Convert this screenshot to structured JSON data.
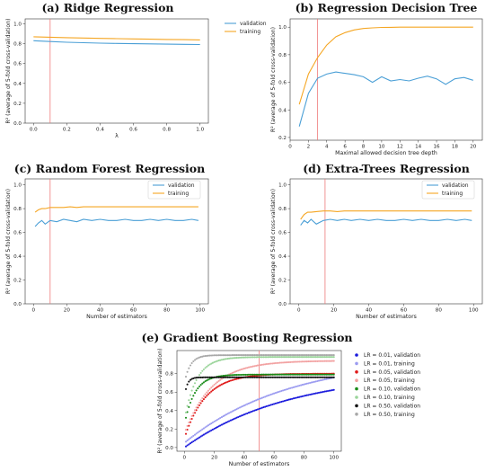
{
  "colors": {
    "validation": "#4a9fd6",
    "training": "#f5a623",
    "vline": "#ee7c7c"
  },
  "chart_data": [
    {
      "id": "a",
      "type": "line",
      "title": "(a) Ridge Regression",
      "xlabel": "λ",
      "ylabel": "R² (average of 5-fold cross-validation)",
      "xlim": [
        -0.05,
        1.05
      ],
      "ylim": [
        0,
        1.05
      ],
      "xticks": [
        0.0,
        0.2,
        0.4,
        0.6,
        0.8,
        1.0
      ],
      "xtick_labels": [
        "0.0",
        "0.2",
        "0.4",
        "0.6",
        "0.8",
        "1.0"
      ],
      "yticks": [
        0.0,
        0.2,
        0.4,
        0.6,
        0.8,
        1.0
      ],
      "ytick_labels": [
        "0.0",
        "0.2",
        "0.4",
        "0.6",
        "0.8",
        "1.0"
      ],
      "vline": 0.1,
      "legend": "outside-right",
      "series": [
        {
          "name": "validation",
          "x": [
            0.0,
            0.1,
            0.2,
            0.3,
            0.4,
            0.5,
            0.6,
            0.7,
            0.8,
            0.9,
            1.0
          ],
          "values": [
            0.83,
            0.822,
            0.815,
            0.81,
            0.806,
            0.803,
            0.8,
            0.798,
            0.796,
            0.794,
            0.792
          ]
        },
        {
          "name": "training",
          "x": [
            0.0,
            0.1,
            0.2,
            0.3,
            0.4,
            0.5,
            0.6,
            0.7,
            0.8,
            0.9,
            1.0
          ],
          "values": [
            0.87,
            0.865,
            0.861,
            0.857,
            0.854,
            0.851,
            0.848,
            0.845,
            0.843,
            0.841,
            0.838
          ]
        }
      ]
    },
    {
      "id": "b",
      "type": "line",
      "title": "(b) Regression Decision Tree",
      "xlabel": "Maximal allowed decision tree depth",
      "ylabel": "R² (average of 5-fold cross-validation)",
      "xlim": [
        0,
        21
      ],
      "ylim": [
        0.18,
        1.06
      ],
      "xticks": [
        0,
        2,
        4,
        6,
        8,
        10,
        12,
        14,
        16,
        18,
        20
      ],
      "xtick_labels": [
        "0",
        "2",
        "4",
        "6",
        "8",
        "10",
        "12",
        "14",
        "16",
        "18",
        "20"
      ],
      "yticks": [
        0.2,
        0.4,
        0.6,
        0.8,
        1.0
      ],
      "ytick_labels": [
        "0.2",
        "0.4",
        "0.6",
        "0.8",
        "1.0"
      ],
      "vline": 3,
      "series": [
        {
          "name": "validation",
          "x": [
            1,
            2,
            3,
            4,
            5,
            6,
            7,
            8,
            9,
            10,
            11,
            12,
            13,
            14,
            15,
            16,
            17,
            18,
            19,
            20
          ],
          "values": [
            0.28,
            0.52,
            0.63,
            0.66,
            0.675,
            0.665,
            0.655,
            0.64,
            0.6,
            0.64,
            0.61,
            0.62,
            0.61,
            0.63,
            0.645,
            0.625,
            0.585,
            0.625,
            0.635,
            0.615
          ]
        },
        {
          "name": "training",
          "x": [
            1,
            2,
            3,
            4,
            5,
            6,
            7,
            8,
            9,
            10,
            11,
            12,
            13,
            14,
            15,
            16,
            17,
            18,
            19,
            20
          ],
          "values": [
            0.44,
            0.66,
            0.78,
            0.87,
            0.93,
            0.96,
            0.98,
            0.99,
            0.995,
            0.998,
            0.999,
            1.0,
            1.0,
            1.0,
            1.0,
            1.0,
            1.0,
            1.0,
            1.0,
            1.0
          ]
        }
      ]
    },
    {
      "id": "c",
      "type": "line",
      "title": "(c) Random Forest Regression",
      "xlabel": "Number of estimators",
      "ylabel": "R² (average of 5-fold cross-validation)",
      "xlim": [
        -5,
        105
      ],
      "ylim": [
        0,
        1.05
      ],
      "xticks": [
        0,
        20,
        40,
        60,
        80,
        100
      ],
      "xtick_labels": [
        "0",
        "20",
        "40",
        "60",
        "80",
        "100"
      ],
      "yticks": [
        0.0,
        0.2,
        0.4,
        0.6,
        0.8,
        1.0
      ],
      "ytick_labels": [
        "0.0",
        "0.2",
        "0.4",
        "0.6",
        "0.8",
        "1.0"
      ],
      "vline": 10,
      "legend": "top-right",
      "series": [
        {
          "name": "validation",
          "x": [
            1,
            3,
            5,
            7,
            10,
            14,
            18,
            22,
            26,
            30,
            35,
            40,
            45,
            50,
            55,
            60,
            65,
            70,
            75,
            80,
            85,
            90,
            95,
            99
          ],
          "values": [
            0.65,
            0.68,
            0.7,
            0.67,
            0.7,
            0.69,
            0.71,
            0.7,
            0.69,
            0.71,
            0.7,
            0.71,
            0.7,
            0.7,
            0.71,
            0.7,
            0.7,
            0.71,
            0.7,
            0.71,
            0.7,
            0.7,
            0.71,
            0.7
          ]
        },
        {
          "name": "training",
          "x": [
            1,
            3,
            5,
            7,
            10,
            14,
            18,
            22,
            26,
            30,
            35,
            40,
            45,
            50,
            55,
            60,
            65,
            70,
            75,
            80,
            85,
            90,
            95,
            99
          ],
          "values": [
            0.77,
            0.79,
            0.8,
            0.8,
            0.81,
            0.81,
            0.81,
            0.815,
            0.81,
            0.815,
            0.815,
            0.815,
            0.815,
            0.815,
            0.815,
            0.815,
            0.815,
            0.815,
            0.815,
            0.815,
            0.815,
            0.815,
            0.815,
            0.815
          ]
        }
      ]
    },
    {
      "id": "d",
      "type": "line",
      "title": "(d) Extra-Trees Regression",
      "xlabel": "Number of estimators",
      "ylabel": "R² (average of 5-fold cross-validation)",
      "xlim": [
        -5,
        105
      ],
      "ylim": [
        0,
        1.05
      ],
      "xticks": [
        0,
        20,
        40,
        60,
        80,
        100
      ],
      "xtick_labels": [
        "0",
        "20",
        "40",
        "60",
        "80",
        "100"
      ],
      "yticks": [
        0.0,
        0.2,
        0.4,
        0.6,
        0.8,
        1.0
      ],
      "ytick_labels": [
        "0.0",
        "0.2",
        "0.4",
        "0.6",
        "0.8",
        "1.0"
      ],
      "vline": 15,
      "legend": "top-right",
      "series": [
        {
          "name": "validation",
          "x": [
            1,
            3,
            5,
            7,
            10,
            14,
            18,
            22,
            26,
            30,
            35,
            40,
            45,
            50,
            55,
            60,
            65,
            70,
            75,
            80,
            85,
            90,
            95,
            99
          ],
          "values": [
            0.66,
            0.7,
            0.68,
            0.71,
            0.67,
            0.7,
            0.71,
            0.7,
            0.71,
            0.7,
            0.71,
            0.7,
            0.71,
            0.7,
            0.7,
            0.71,
            0.7,
            0.71,
            0.7,
            0.7,
            0.71,
            0.7,
            0.71,
            0.7
          ]
        },
        {
          "name": "training",
          "x": [
            1,
            3,
            5,
            7,
            10,
            14,
            18,
            22,
            26,
            30,
            35,
            40,
            45,
            50,
            55,
            60,
            65,
            70,
            75,
            80,
            85,
            90,
            95,
            99
          ],
          "values": [
            0.71,
            0.75,
            0.77,
            0.77,
            0.775,
            0.78,
            0.78,
            0.775,
            0.78,
            0.78,
            0.78,
            0.78,
            0.78,
            0.78,
            0.78,
            0.78,
            0.78,
            0.78,
            0.78,
            0.78,
            0.78,
            0.78,
            0.78,
            0.78
          ]
        }
      ]
    },
    {
      "id": "e",
      "type": "scatter",
      "title": "(e) Gradient Boosting Regression",
      "xlabel": "Number of estimators",
      "ylabel": "R² (average of 5-fold cross-validation)",
      "xlim": [
        -5,
        105
      ],
      "ylim": [
        -0.04,
        1.05
      ],
      "xticks": [
        0,
        20,
        40,
        60,
        80,
        100
      ],
      "xtick_labels": [
        "0",
        "20",
        "40",
        "60",
        "80",
        "100"
      ],
      "yticks": [
        0.0,
        0.2,
        0.4,
        0.6,
        0.8
      ],
      "ytick_labels": [
        "0.0",
        "0.2",
        "0.4",
        "0.6",
        "0.8"
      ],
      "vline": 50,
      "legend": "outside-right",
      "series_model": "saturating curve: R² = start + (plateau - start) * (1 - exp(-n / tau)), n = 1..100",
      "series": [
        {
          "name": "LR = 0.01, validation",
          "color": "#1a1adc",
          "start": 0.0,
          "plateau": 0.82,
          "tau": 70,
          "marker": "dot"
        },
        {
          "name": "LR = 0.01, training",
          "color": "#9b9bf0",
          "start": 0.05,
          "plateau": 0.98,
          "tau": 70,
          "marker": "dot"
        },
        {
          "name": "LR = 0.05, validation",
          "color": "#e01818",
          "start": 0.1,
          "plateau": 0.8,
          "tau": 14,
          "marker": "dot"
        },
        {
          "name": "LR = 0.05, training",
          "color": "#f2a2a2",
          "start": 0.15,
          "plateau": 0.94,
          "tau": 18,
          "marker": "dot"
        },
        {
          "name": "LR = 0.10, validation",
          "color": "#1a8c1a",
          "start": 0.25,
          "plateau": 0.79,
          "tau": 7,
          "marker": "dot"
        },
        {
          "name": "LR = 0.10, training",
          "color": "#9ad49a",
          "start": 0.3,
          "plateau": 0.98,
          "tau": 8,
          "marker": "dot"
        },
        {
          "name": "LR = 0.50, validation",
          "color": "#111111",
          "start": 0.55,
          "plateau": 0.76,
          "tau": 2,
          "marker": "dot"
        },
        {
          "name": "LR = 0.50, training",
          "color": "#a8a8a8",
          "start": 0.7,
          "plateau": 1.0,
          "tau": 4,
          "marker": "dot"
        }
      ]
    }
  ]
}
